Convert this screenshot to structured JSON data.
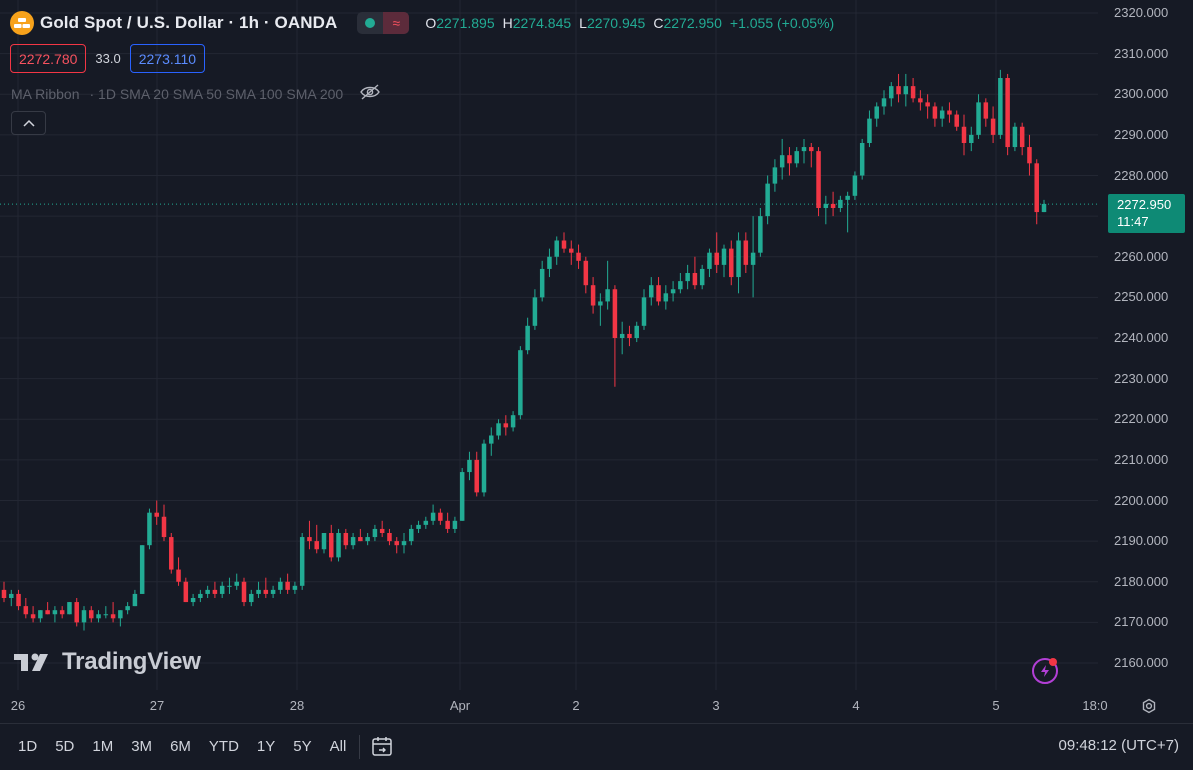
{
  "header": {
    "symbol_title": "Gold Spot / U.S. Dollar · 1h · OANDA",
    "ohlc": [
      {
        "key": "O",
        "value": "2271.895"
      },
      {
        "key": "H",
        "value": "2274.845"
      },
      {
        "key": "L",
        "value": "2270.945"
      },
      {
        "key": "C",
        "value": "2272.950"
      }
    ],
    "change": "+1.055 (+0.05%)"
  },
  "quote": {
    "sell": "2272.780",
    "spread": "33.0",
    "buy": "2273.110"
  },
  "indicator": {
    "name": "MA Ribbon",
    "params": "· 1D SMA 20 SMA 50 SMA 100 SMA 200"
  },
  "price_scale": {
    "ticks": [
      "2320.000",
      "2310.000",
      "2300.000",
      "2290.000",
      "2280.000",
      "2270.000",
      "2260.000",
      "2250.000",
      "2240.000",
      "2230.000",
      "2220.000",
      "2210.000",
      "2200.000",
      "2190.000",
      "2180.000",
      "2170.000",
      "2160.000"
    ],
    "last_price": "2272.950",
    "countdown": "11:47"
  },
  "time_axis": [
    "26",
    "27",
    "28",
    "Apr",
    "2",
    "3",
    "4",
    "5",
    "18:0"
  ],
  "logo": "TradingView",
  "bottom_bar": {
    "periods": [
      "1D",
      "5D",
      "1M",
      "3M",
      "6M",
      "YTD",
      "1Y",
      "5Y",
      "All"
    ],
    "clock": "09:48:12 (UTC+7)"
  },
  "colors": {
    "up": "#22ab94",
    "down": "#f23645",
    "background": "#161a25",
    "grid": "#232733",
    "accent": "#2962ff"
  },
  "icons": [
    "gold-bars-icon",
    "chevron-up-icon",
    "eye-off-icon",
    "gear-icon",
    "calendar-range-icon",
    "lightning-icon"
  ],
  "chart_data": {
    "type": "candlestick",
    "symbol": "XAUUSD",
    "interval": "1h",
    "ylim": [
      2155,
      2322
    ],
    "y_tick_step": 10,
    "x_labels": [
      "26",
      "27",
      "28",
      "Apr",
      "2",
      "3",
      "4",
      "5",
      "18:0"
    ],
    "grid": true,
    "last_close": 2272.95,
    "ohlc": [
      [
        2178,
        2180,
        2175,
        2176
      ],
      [
        2176,
        2178,
        2174,
        2177
      ],
      [
        2177,
        2178,
        2173,
        2174
      ],
      [
        2174,
        2176,
        2171,
        2172
      ],
      [
        2172,
        2174,
        2170,
        2171
      ],
      [
        2171,
        2173,
        2170,
        2173
      ],
      [
        2173,
        2175,
        2172,
        2172
      ],
      [
        2172,
        2174,
        2170,
        2173
      ],
      [
        2173,
        2174,
        2171,
        2172
      ],
      [
        2172,
        2175,
        2172,
        2175
      ],
      [
        2175,
        2176,
        2169,
        2170
      ],
      [
        2170,
        2174,
        2168,
        2173
      ],
      [
        2173,
        2174,
        2170,
        2171
      ],
      [
        2171,
        2173,
        2170,
        2172
      ],
      [
        2172,
        2174,
        2171,
        2172
      ],
      [
        2172,
        2175,
        2170,
        2171
      ],
      [
        2171,
        2173,
        2169,
        2173
      ],
      [
        2173,
        2175,
        2172,
        2174
      ],
      [
        2174,
        2178,
        2174,
        2177
      ],
      [
        2177,
        2189,
        2177,
        2189
      ],
      [
        2189,
        2198,
        2188,
        2197
      ],
      [
        2197,
        2200,
        2194,
        2196
      ],
      [
        2196,
        2199,
        2190,
        2191
      ],
      [
        2191,
        2192,
        2182,
        2183
      ],
      [
        2183,
        2186,
        2179,
        2180
      ],
      [
        2180,
        2181,
        2175,
        2175
      ],
      [
        2175,
        2177,
        2174,
        2176
      ],
      [
        2176,
        2178,
        2175,
        2177
      ],
      [
        2177,
        2179,
        2176,
        2178
      ],
      [
        2178,
        2180,
        2176,
        2177
      ],
      [
        2177,
        2180,
        2176,
        2179
      ],
      [
        2179,
        2181,
        2177,
        2179
      ],
      [
        2179,
        2182,
        2178,
        2180
      ],
      [
        2180,
        2181,
        2174,
        2175
      ],
      [
        2175,
        2178,
        2174,
        2177
      ],
      [
        2177,
        2180,
        2176,
        2178
      ],
      [
        2178,
        2181,
        2176,
        2177
      ],
      [
        2177,
        2179,
        2176,
        2178
      ],
      [
        2178,
        2181,
        2177,
        2180
      ],
      [
        2180,
        2182,
        2177,
        2178
      ],
      [
        2178,
        2180,
        2177,
        2179
      ],
      [
        2179,
        2192,
        2178,
        2191
      ],
      [
        2191,
        2195,
        2188,
        2190
      ],
      [
        2190,
        2194,
        2187,
        2188
      ],
      [
        2188,
        2192,
        2187,
        2192
      ],
      [
        2192,
        2194,
        2185,
        2186
      ],
      [
        2186,
        2193,
        2185,
        2192
      ],
      [
        2192,
        2193,
        2188,
        2189
      ],
      [
        2189,
        2192,
        2188,
        2191
      ],
      [
        2191,
        2193,
        2190,
        2190
      ],
      [
        2190,
        2192,
        2189,
        2191
      ],
      [
        2191,
        2194,
        2190,
        2193
      ],
      [
        2193,
        2195,
        2191,
        2192
      ],
      [
        2192,
        2193,
        2189,
        2190
      ],
      [
        2190,
        2191,
        2187,
        2189
      ],
      [
        2189,
        2192,
        2187,
        2190
      ],
      [
        2190,
        2194,
        2189,
        2193
      ],
      [
        2193,
        2195,
        2192,
        2194
      ],
      [
        2194,
        2196,
        2193,
        2195
      ],
      [
        2195,
        2199,
        2194,
        2197
      ],
      [
        2197,
        2198,
        2194,
        2195
      ],
      [
        2195,
        2197,
        2192,
        2193
      ],
      [
        2193,
        2196,
        2192,
        2195
      ],
      [
        2195,
        2208,
        2195,
        2207
      ],
      [
        2207,
        2212,
        2205,
        2210
      ],
      [
        2210,
        2212,
        2201,
        2202
      ],
      [
        2202,
        2215,
        2201,
        2214
      ],
      [
        2214,
        2218,
        2211,
        2216
      ],
      [
        2216,
        2220,
        2215,
        2219
      ],
      [
        2219,
        2221,
        2216,
        2218
      ],
      [
        2218,
        2222,
        2217,
        2221
      ],
      [
        2221,
        2238,
        2220,
        2237
      ],
      [
        2237,
        2245,
        2236,
        2243
      ],
      [
        2243,
        2252,
        2242,
        2250
      ],
      [
        2250,
        2259,
        2249,
        2257
      ],
      [
        2257,
        2262,
        2255,
        2260
      ],
      [
        2260,
        2265,
        2258,
        2264
      ],
      [
        2264,
        2266,
        2261,
        2262
      ],
      [
        2262,
        2264,
        2258,
        2261
      ],
      [
        2261,
        2263,
        2257,
        2259
      ],
      [
        2259,
        2260,
        2251,
        2253
      ],
      [
        2253,
        2255,
        2246,
        2248
      ],
      [
        2248,
        2251,
        2243,
        2249
      ],
      [
        2249,
        2259,
        2247,
        2252
      ],
      [
        2252,
        2253,
        2228,
        2240
      ],
      [
        2240,
        2244,
        2236,
        2241
      ],
      [
        2241,
        2243,
        2238,
        2240
      ],
      [
        2240,
        2244,
        2239,
        2243
      ],
      [
        2243,
        2252,
        2242,
        2250
      ],
      [
        2250,
        2255,
        2248,
        2253
      ],
      [
        2253,
        2255,
        2248,
        2249
      ],
      [
        2249,
        2253,
        2247,
        2251
      ],
      [
        2251,
        2254,
        2249,
        2252
      ],
      [
        2252,
        2256,
        2251,
        2254
      ],
      [
        2254,
        2258,
        2252,
        2256
      ],
      [
        2256,
        2260,
        2252,
        2253
      ],
      [
        2253,
        2258,
        2252,
        2257
      ],
      [
        2257,
        2262,
        2255,
        2261
      ],
      [
        2261,
        2266,
        2256,
        2258
      ],
      [
        2258,
        2263,
        2255,
        2262
      ],
      [
        2262,
        2264,
        2253,
        2255
      ],
      [
        2255,
        2266,
        2251,
        2264
      ],
      [
        2264,
        2266,
        2256,
        2258
      ],
      [
        2258,
        2270,
        2250,
        2261
      ],
      [
        2261,
        2272,
        2260,
        2270
      ],
      [
        2270,
        2280,
        2268,
        2278
      ],
      [
        2278,
        2284,
        2276,
        2282
      ],
      [
        2282,
        2289,
        2279,
        2285
      ],
      [
        2285,
        2287,
        2280,
        2283
      ],
      [
        2283,
        2287,
        2282,
        2286
      ],
      [
        2286,
        2289,
        2283,
        2287
      ],
      [
        2287,
        2288,
        2282,
        2286
      ],
      [
        2286,
        2287,
        2270,
        2272
      ],
      [
        2272,
        2275,
        2268,
        2273
      ],
      [
        2273,
        2276,
        2270,
        2272
      ],
      [
        2272,
        2275,
        2271,
        2274
      ],
      [
        2274,
        2276,
        2266,
        2275
      ],
      [
        2275,
        2281,
        2274,
        2280
      ],
      [
        2280,
        2289,
        2279,
        2288
      ],
      [
        2288,
        2296,
        2287,
        2294
      ],
      [
        2294,
        2298,
        2292,
        2297
      ],
      [
        2297,
        2301,
        2295,
        2299
      ],
      [
        2299,
        2303,
        2297,
        2302
      ],
      [
        2302,
        2305,
        2298,
        2300
      ],
      [
        2300,
        2305,
        2297,
        2302
      ],
      [
        2302,
        2304,
        2298,
        2299
      ],
      [
        2299,
        2301,
        2296,
        2298
      ],
      [
        2298,
        2300,
        2294,
        2297
      ],
      [
        2297,
        2298,
        2292,
        2294
      ],
      [
        2294,
        2297,
        2292,
        2296
      ],
      [
        2296,
        2298,
        2293,
        2295
      ],
      [
        2295,
        2296,
        2291,
        2292
      ],
      [
        2292,
        2295,
        2285,
        2288
      ],
      [
        2288,
        2292,
        2286,
        2290
      ],
      [
        2290,
        2300,
        2289,
        2298
      ],
      [
        2298,
        2299,
        2292,
        2294
      ],
      [
        2294,
        2297,
        2288,
        2290
      ],
      [
        2290,
        2306,
        2289,
        2304
      ],
      [
        2304,
        2305,
        2285,
        2287
      ],
      [
        2287,
        2293,
        2286,
        2292
      ],
      [
        2292,
        2293,
        2285,
        2287
      ],
      [
        2287,
        2290,
        2280,
        2283
      ],
      [
        2283,
        2284,
        2268,
        2271
      ],
      [
        2271,
        2274,
        2271,
        2273
      ]
    ]
  }
}
